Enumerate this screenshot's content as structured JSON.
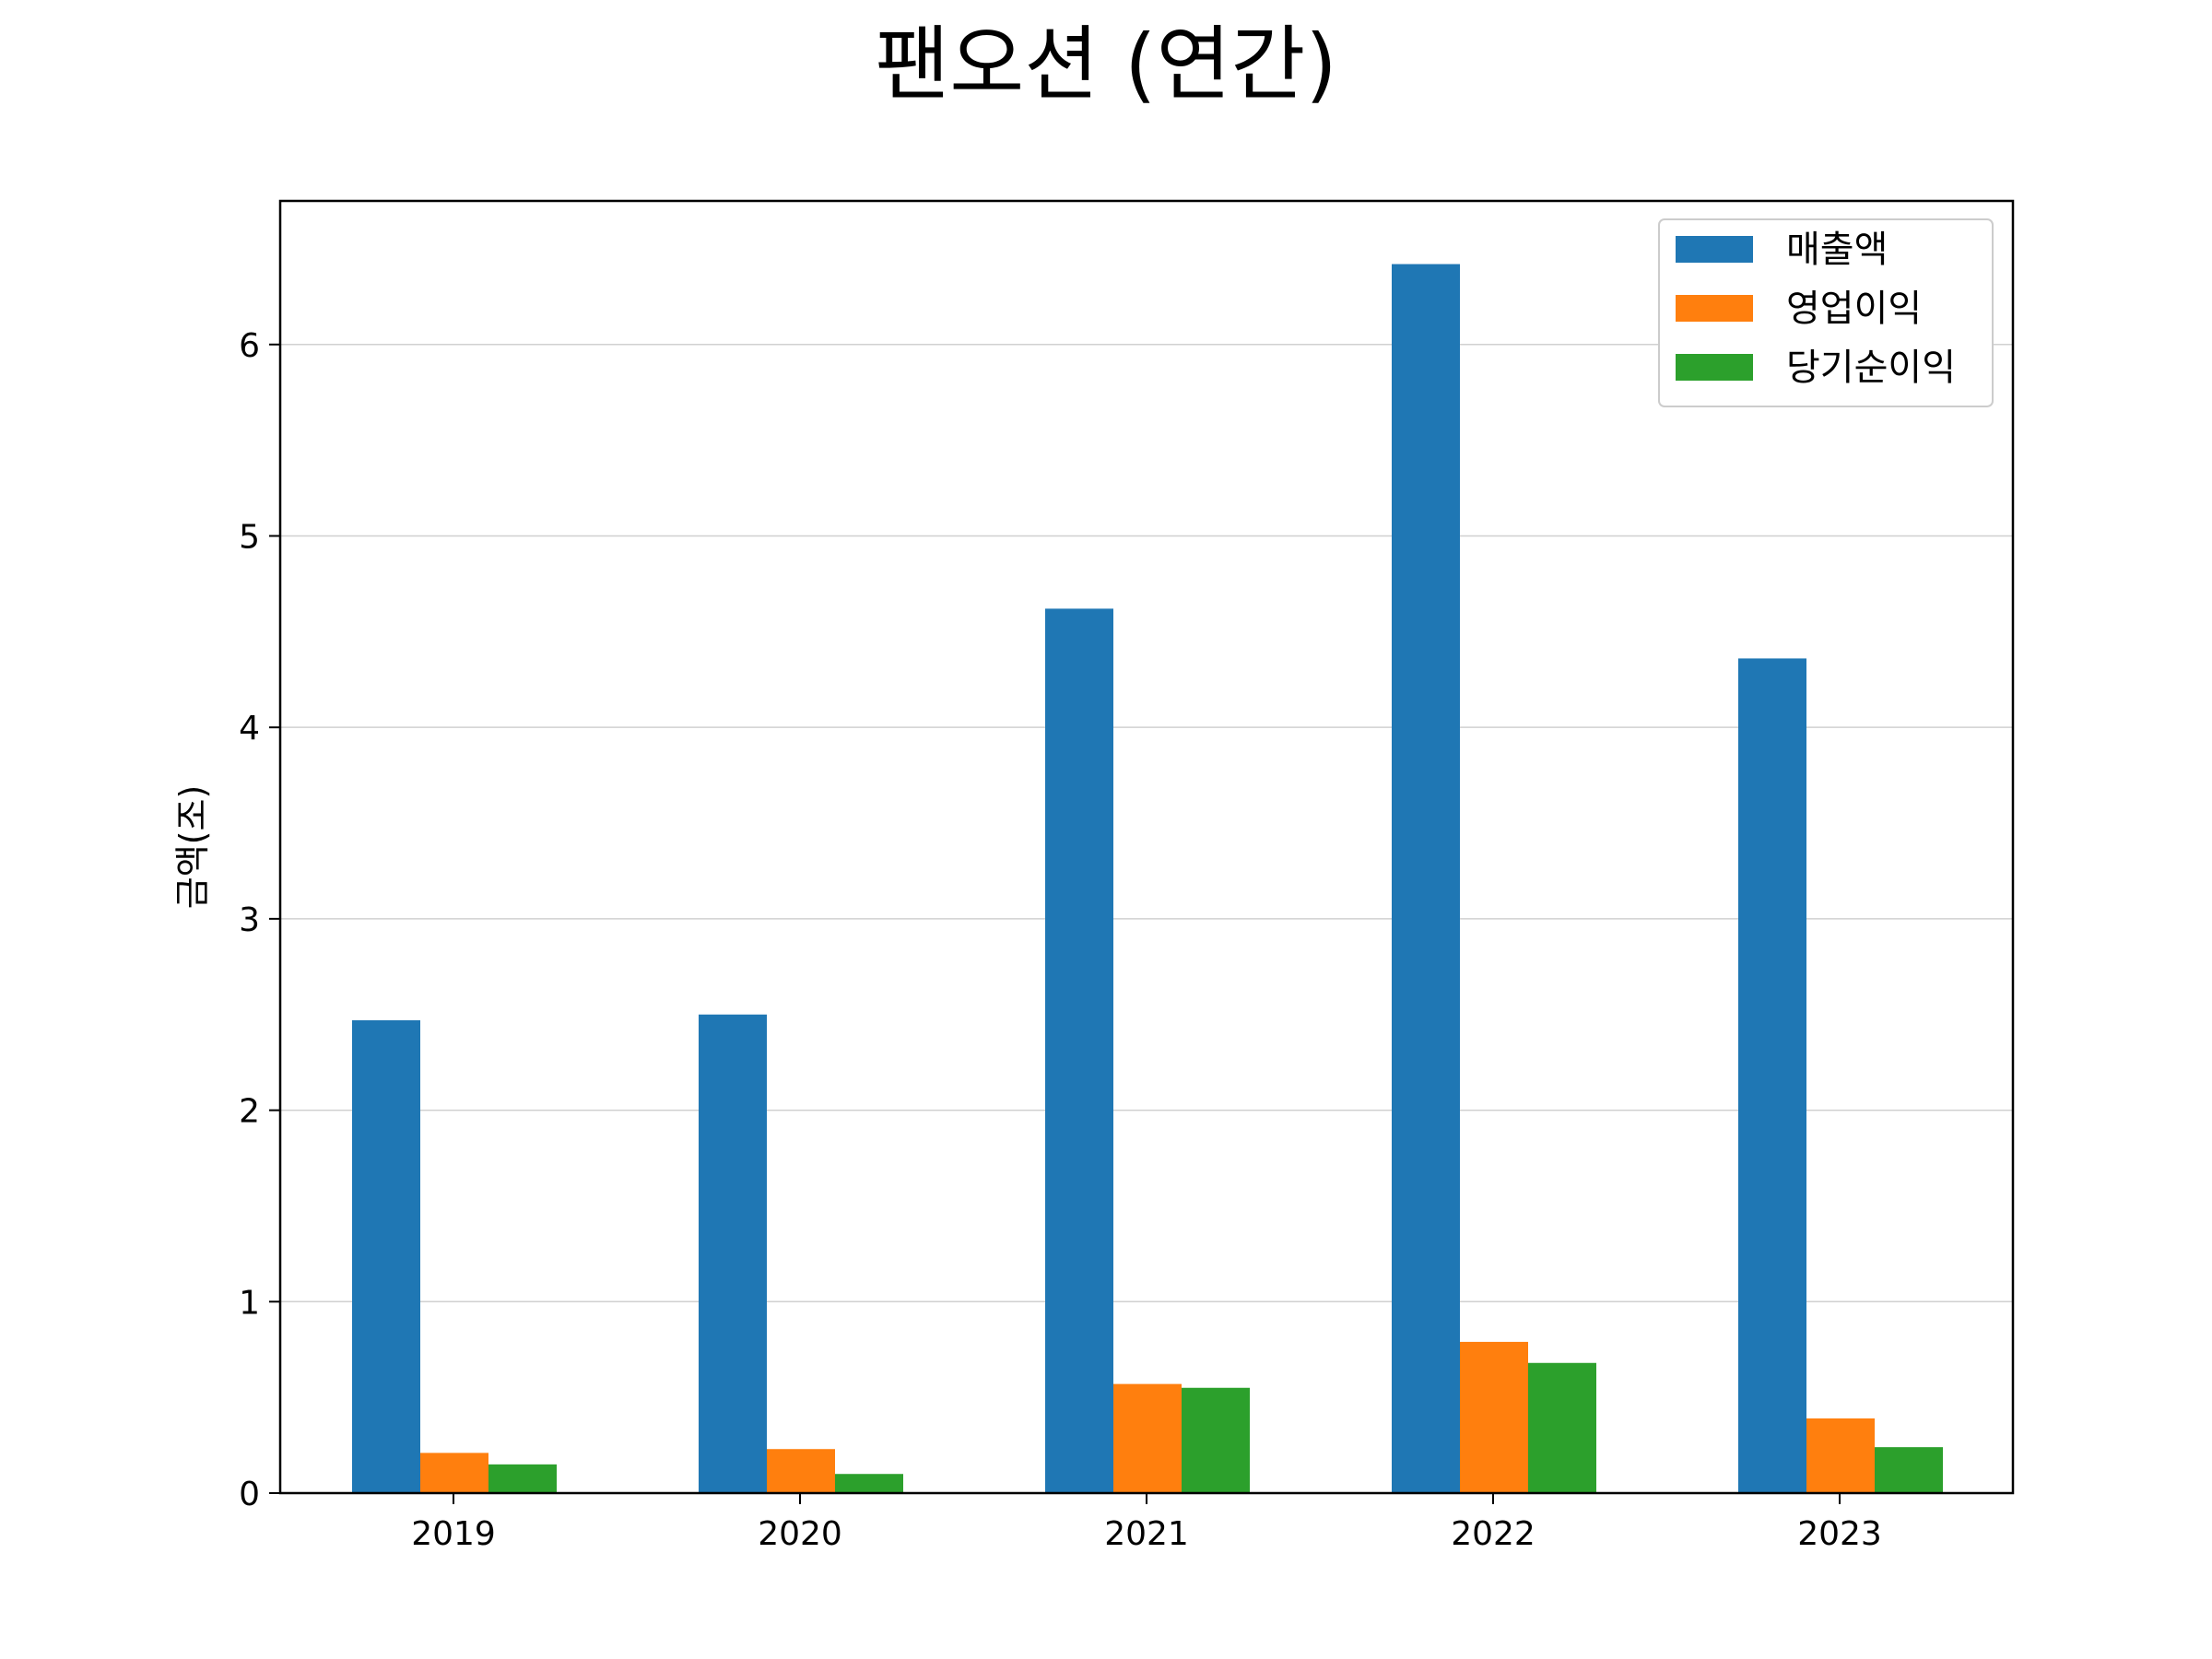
{
  "chart_data": {
    "type": "bar",
    "title": "팬오션 (연간)",
    "xlabel": "",
    "ylabel": "금액(조)",
    "categories": [
      "2019",
      "2020",
      "2021",
      "2022",
      "2023"
    ],
    "series": [
      {
        "name": "매출액",
        "values": [
          2.47,
          2.5,
          4.62,
          6.42,
          4.36
        ]
      },
      {
        "name": "영업이익",
        "values": [
          0.21,
          0.23,
          0.57,
          0.79,
          0.39
        ]
      },
      {
        "name": "당기순이익",
        "values": [
          0.15,
          0.1,
          0.55,
          0.68,
          0.24
        ]
      }
    ],
    "ylim": [
      0,
      6.75
    ],
    "yticks": [
      "0",
      "1",
      "2",
      "3",
      "4",
      "5",
      "6"
    ],
    "grid": "y",
    "legend_position": "top-right",
    "colors": [
      "#1f77b4",
      "#ff7f0e",
      "#2ca02c"
    ]
  }
}
